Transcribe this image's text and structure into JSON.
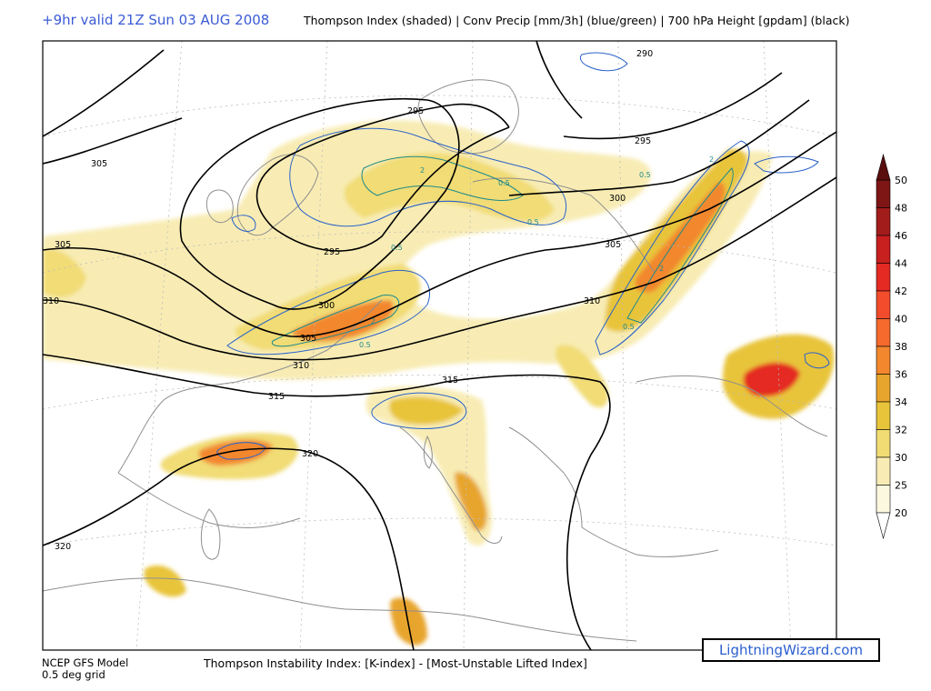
{
  "header": {
    "valid_time": "+9hr valid 21Z Sun 03 AUG 2008",
    "fields": "Thompson Index (shaded) | Conv Precip [mm/3h] (blue/green) | 700 hPa Height [gpdam] (black)"
  },
  "footer": {
    "model": "NCEP GFS Model",
    "grid": "0.5 deg grid",
    "definition": "Thompson Instability Index: [K-index] - [Most-Unstable Lifted Index]",
    "brand": "LightningWizard.com"
  },
  "colorbar": {
    "levels": [
      "50",
      "48",
      "46",
      "44",
      "42",
      "40",
      "38",
      "36",
      "34",
      "32",
      "30",
      "25",
      "20"
    ],
    "colors": [
      "#5a0e0e",
      "#7e1616",
      "#a31c1c",
      "#c81f1f",
      "#e42a22",
      "#f24c2c",
      "#f66a2e",
      "#f2872d",
      "#e8a52d",
      "#e8c43a",
      "#f1dc74",
      "#f8ecb4",
      "#fcf8e0"
    ]
  },
  "contour_labels": {
    "height": [
      "290",
      "295",
      "295",
      "295",
      "300",
      "300",
      "305",
      "305",
      "305",
      "305",
      "310",
      "310",
      "310",
      "315",
      "315",
      "320",
      "320"
    ],
    "precip": [
      "2",
      "0.5",
      "0.5",
      "0.5",
      "2",
      "0.5",
      "2",
      "2",
      "0.5",
      "0.5"
    ]
  },
  "colors": {
    "height_contour": "#000000",
    "precip_contour": "#2b63c9",
    "precip_contour_strong": "#1f8a8a",
    "coastline": "#8f8f8f",
    "graticule": "#bbbbbb"
  }
}
